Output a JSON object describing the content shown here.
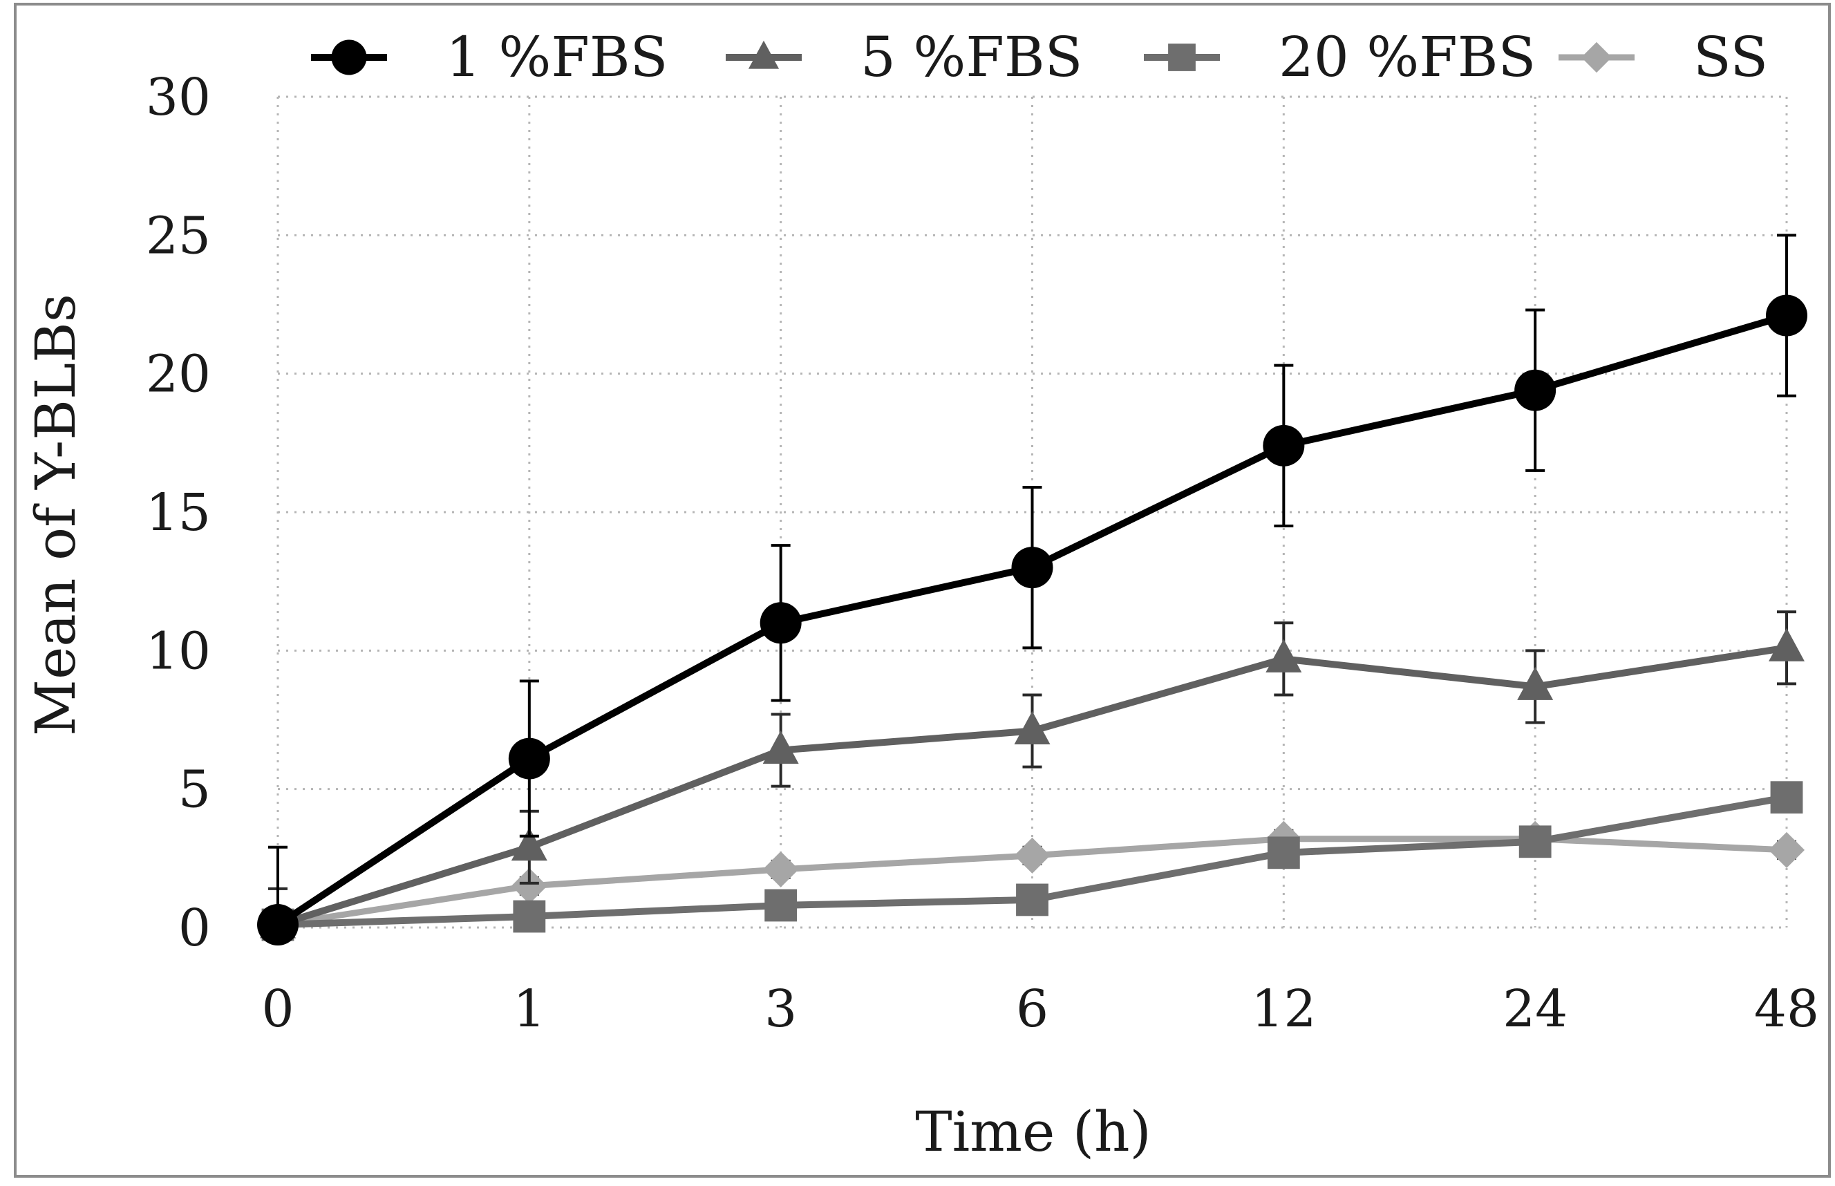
{
  "chart_data": {
    "type": "line",
    "title": "",
    "xlabel": "Time (h)",
    "ylabel": "Mean of Y-BLBs",
    "categories": [
      "0",
      "1",
      "3",
      "6",
      "12",
      "24",
      "48"
    ],
    "ylim": [
      0,
      30
    ],
    "yticks": [
      0,
      5,
      10,
      15,
      20,
      25,
      30
    ],
    "grid": true,
    "legend_position": "top",
    "series": [
      {
        "name": "1 %FBS",
        "marker": "circle",
        "color": "#000000",
        "values": [
          0.1,
          6.1,
          11.0,
          13.0,
          17.4,
          19.4,
          22.1
        ],
        "errors": [
          2.8,
          2.8,
          2.8,
          2.9,
          2.9,
          2.9,
          2.9
        ]
      },
      {
        "name": "5 %FBS",
        "marker": "triangle",
        "color": "#606060",
        "values": [
          0.1,
          2.9,
          6.4,
          7.1,
          9.7,
          8.7,
          10.1
        ],
        "errors": [
          1.3,
          1.3,
          1.3,
          1.3,
          1.3,
          1.3,
          1.3
        ]
      },
      {
        "name": "20 %FBS",
        "marker": "square",
        "color": "#6e6e6e",
        "values": [
          0.1,
          0.4,
          0.8,
          1.0,
          2.7,
          3.1,
          4.7
        ],
        "errors": [
          0.4,
          0.4,
          0.4,
          0.5,
          0.4,
          0.4,
          0.5
        ]
      },
      {
        "name": "SS",
        "marker": "diamond",
        "color": "#a6a6a6",
        "values": [
          0.1,
          1.5,
          2.1,
          2.6,
          3.2,
          3.2,
          2.8
        ],
        "errors": [
          0.3,
          0.3,
          0.3,
          0.3,
          0.3,
          0.3,
          0.3
        ]
      }
    ]
  }
}
